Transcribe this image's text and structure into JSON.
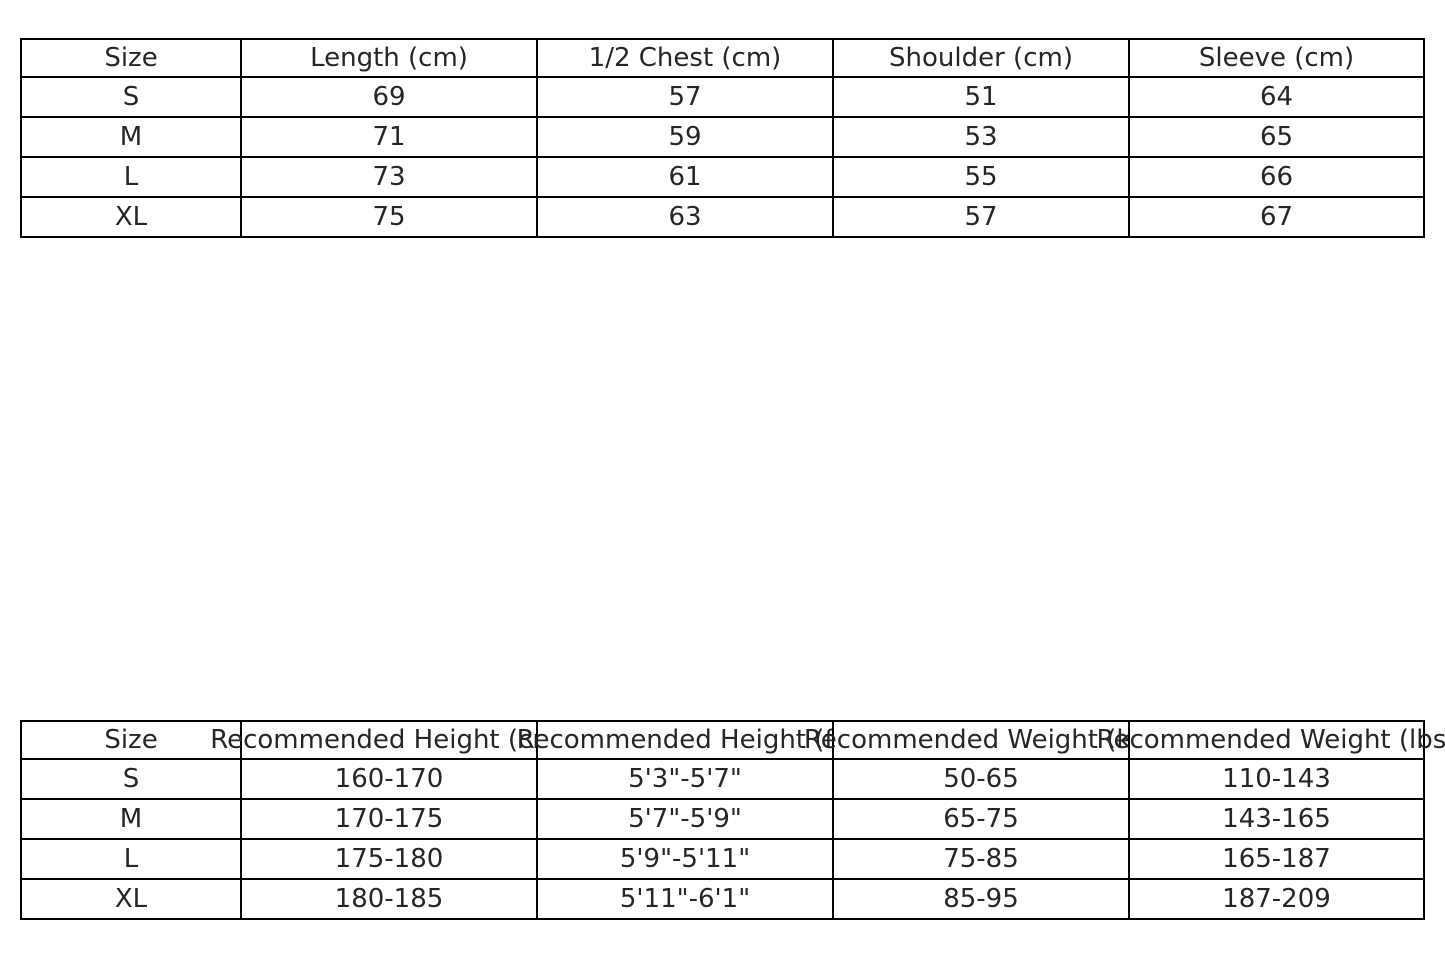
{
  "measurements_table": {
    "headers": [
      "Size",
      "Length (cm)",
      "1/2 Chest (cm)",
      "Shoulder (cm)",
      "Sleeve (cm)"
    ],
    "rows": [
      [
        "S",
        "69",
        "57",
        "51",
        "64"
      ],
      [
        "M",
        "71",
        "59",
        "53",
        "65"
      ],
      [
        "L",
        "73",
        "61",
        "55",
        "66"
      ],
      [
        "XL",
        "75",
        "63",
        "57",
        "67"
      ]
    ]
  },
  "recommendation_table": {
    "headers": [
      "Size",
      "Recommended Height (cm)",
      "Recommended Height (ft)",
      "Recommended Weight (kg)",
      "Recommended Weight (lbs)"
    ],
    "rows": [
      [
        "S",
        "160-170",
        "5'3\"-5'7\"",
        "50-65",
        "110-143"
      ],
      [
        "M",
        "170-175",
        "5'7\"-5'9\"",
        "65-75",
        "143-165"
      ],
      [
        "L",
        "175-180",
        "5'9\"-5'11\"",
        "75-85",
        "165-187"
      ],
      [
        "XL",
        "180-185",
        "5'11\"-6'1\"",
        "85-95",
        "187-209"
      ]
    ]
  }
}
